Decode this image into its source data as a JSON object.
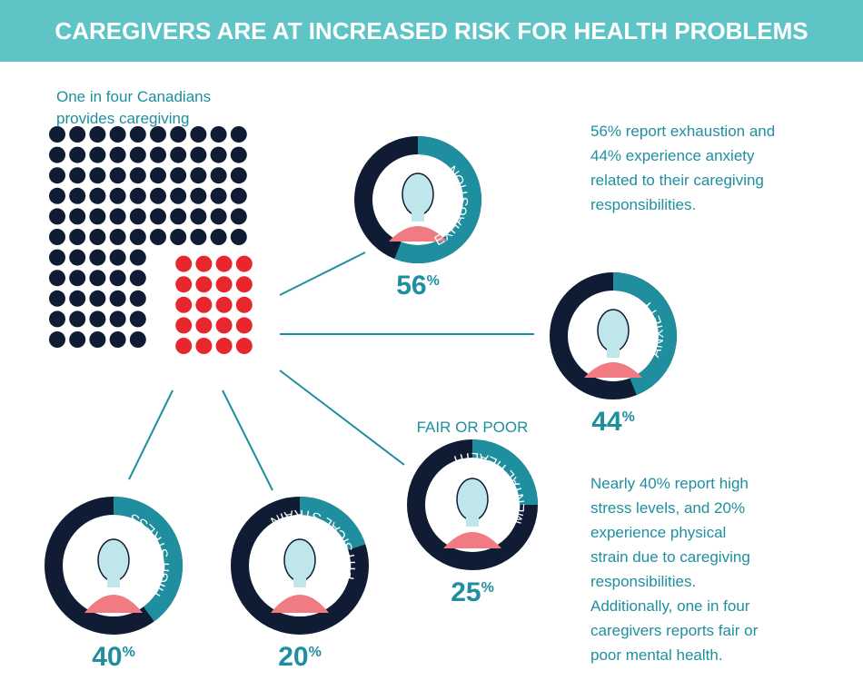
{
  "header": {
    "title": "CAREGIVERS ARE AT INCREASED RISK FOR HEALTH PROBLEMS"
  },
  "intro": {
    "lines": [
      "One in four Canadians",
      "provides caregiving"
    ]
  },
  "note_top": {
    "lines": [
      "56% report exhaustion and",
      "44% experience anxiety",
      "related to their caregiving",
      "responsibilities."
    ]
  },
  "note_bottom": {
    "lines": [
      "Nearly 40% report high",
      "stress levels, and 20%",
      "experience physical",
      "strain due to caregiving",
      "responsibilities.",
      "Additionally, one in four",
      "caregivers reports fair or",
      "poor mental health."
    ]
  },
  "items": [
    {
      "label": "EXHAUSTION",
      "value": 56,
      "unit": "%"
    },
    {
      "label": "ANXIETY",
      "value": 44,
      "unit": "%"
    },
    {
      "label": "MENTAL HEALTH",
      "caption": "FAIR OR POOR",
      "value": 25,
      "unit": "%"
    },
    {
      "label": "HIGH STRESS",
      "value": 40,
      "unit": "%"
    },
    {
      "label": "PHYSICAL STRAIN",
      "value": 20,
      "unit": "%"
    }
  ]
}
